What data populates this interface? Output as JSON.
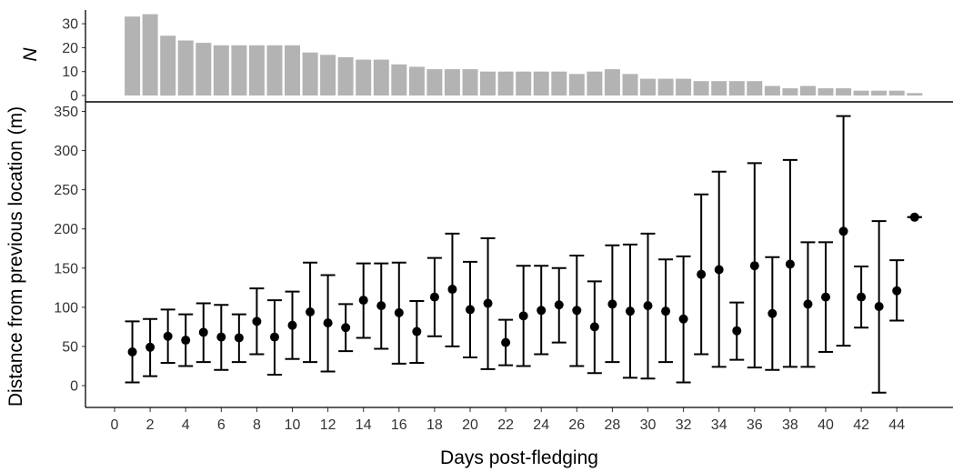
{
  "chart_data": [
    {
      "type": "bar",
      "ylabel": "N",
      "ylim": [
        0,
        35
      ],
      "yticks": [
        0,
        10,
        20,
        30
      ],
      "bar_color": "#b3b3b3",
      "x": [
        1,
        2,
        3,
        4,
        5,
        6,
        7,
        8,
        9,
        10,
        11,
        12,
        13,
        14,
        15,
        16,
        17,
        18,
        19,
        20,
        21,
        22,
        23,
        24,
        25,
        26,
        27,
        28,
        29,
        30,
        31,
        32,
        33,
        34,
        35,
        36,
        37,
        38,
        39,
        40,
        41,
        42,
        43,
        44,
        45
      ],
      "values": [
        33,
        34,
        25,
        23,
        22,
        21,
        21,
        21,
        21,
        21,
        18,
        17,
        16,
        15,
        15,
        13,
        12,
        11,
        11,
        11,
        10,
        10,
        10,
        10,
        10,
        9,
        10,
        11,
        9,
        7,
        7,
        7,
        6,
        6,
        6,
        6,
        4,
        3,
        4,
        3,
        3,
        2,
        2,
        2,
        1
      ]
    },
    {
      "type": "scatter",
      "xlabel": "Days post-fledging",
      "ylabel": "Distance from previous location (m)",
      "xlim": [
        0,
        46
      ],
      "ylim": [
        -20,
        360
      ],
      "xticks": [
        0,
        2,
        4,
        6,
        8,
        10,
        12,
        14,
        16,
        18,
        20,
        22,
        24,
        26,
        28,
        30,
        32,
        34,
        36,
        38,
        40,
        42,
        44
      ],
      "yticks": [
        0,
        50,
        100,
        150,
        200,
        250,
        300,
        350
      ],
      "grid": false,
      "point_color": "#000000",
      "x": [
        1,
        2,
        3,
        4,
        5,
        6,
        7,
        8,
        9,
        10,
        11,
        12,
        13,
        14,
        15,
        16,
        17,
        18,
        19,
        20,
        21,
        22,
        23,
        24,
        25,
        26,
        27,
        28,
        29,
        30,
        31,
        32,
        33,
        34,
        35,
        36,
        37,
        38,
        39,
        40,
        41,
        42,
        43,
        44,
        45
      ],
      "mean": [
        43,
        49,
        63,
        58,
        68,
        62,
        61,
        82,
        62,
        77,
        94,
        80,
        74,
        109,
        102,
        93,
        69,
        113,
        123,
        97,
        105,
        55,
        89,
        96,
        103,
        96,
        75,
        104,
        95,
        102,
        95,
        85,
        142,
        148,
        70,
        153,
        92,
        155,
        104,
        113,
        197,
        113,
        101,
        121,
        215
      ],
      "lower": [
        4,
        12,
        29,
        25,
        30,
        20,
        30,
        40,
        14,
        34,
        30,
        18,
        44,
        61,
        47,
        28,
        29,
        63,
        50,
        36,
        21,
        26,
        25,
        40,
        55,
        25,
        16,
        30,
        10,
        9,
        30,
        4,
        40,
        24,
        33,
        23,
        20,
        24,
        24,
        43,
        51,
        74,
        -9,
        83,
        215
      ],
      "upper": [
        82,
        85,
        97,
        91,
        105,
        103,
        91,
        124,
        109,
        120,
        157,
        141,
        104,
        156,
        156,
        157,
        108,
        163,
        194,
        158,
        188,
        84,
        153,
        153,
        150,
        166,
        133,
        179,
        180,
        194,
        161,
        165,
        244,
        273,
        106,
        284,
        164,
        288,
        183,
        183,
        344,
        152,
        210,
        160,
        215
      ]
    }
  ]
}
